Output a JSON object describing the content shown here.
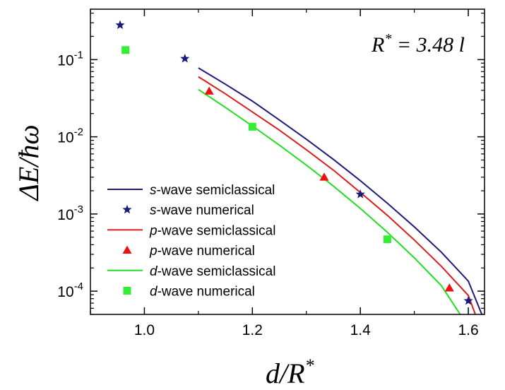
{
  "chart_data": {
    "type": "scatter",
    "annotation": {
      "lhs": "R",
      "sup": "*",
      "rhs": " = 3.48 ",
      "unit": "l"
    },
    "xlabel": {
      "main": "d/R",
      "sup": "*"
    },
    "ylabel": "ΔE/ħω",
    "xlim": [
      0.9,
      1.63
    ],
    "ylim": [
      5e-05,
      0.45
    ],
    "ylog": true,
    "x_ticks": [
      1.0,
      1.2,
      1.4,
      1.6
    ],
    "x_tick_labels": [
      "1.0",
      "1.2",
      "1.4",
      "1.6"
    ],
    "x_minor_ticks": [
      0.9,
      1.1,
      1.3,
      1.5
    ],
    "y_ticks": [
      {
        "value": 0.1,
        "base": "10",
        "exp": "-1"
      },
      {
        "value": 0.01,
        "base": "10",
        "exp": "-2"
      },
      {
        "value": 0.001,
        "base": "10",
        "exp": "-3"
      },
      {
        "value": 0.0001,
        "base": "10",
        "exp": "-4"
      }
    ],
    "legend_position": "bottom-left",
    "series": [
      {
        "kind": "line",
        "name": "s-wave semiclassical",
        "prefix": "s",
        "suffix": "-wave semiclassical",
        "color": "#1a1a7a",
        "x": [
          1.1,
          1.15,
          1.2,
          1.25,
          1.3,
          1.35,
          1.4,
          1.45,
          1.5,
          1.55,
          1.6,
          1.625
        ],
        "y": [
          0.078,
          0.048,
          0.029,
          0.0165,
          0.0093,
          0.0051,
          0.0027,
          0.00138,
          0.00068,
          0.00032,
          0.000135,
          5e-05
        ]
      },
      {
        "kind": "marker",
        "marker": "star",
        "name": "s-wave numerical",
        "prefix": "s",
        "suffix": "-wave numerical",
        "color": "#1a1a7a",
        "x": [
          0.955,
          1.075,
          1.4,
          1.6
        ],
        "y": [
          0.28,
          0.103,
          0.0018,
          7.5e-05
        ]
      },
      {
        "kind": "line",
        "name": "p-wave semiclassical",
        "prefix": "p",
        "suffix": "-wave semiclassical",
        "color": "#dd1c1c",
        "x": [
          1.1,
          1.15,
          1.2,
          1.25,
          1.3,
          1.35,
          1.4,
          1.45,
          1.5,
          1.55,
          1.6,
          1.613
        ],
        "y": [
          0.06,
          0.036,
          0.021,
          0.0122,
          0.0068,
          0.0037,
          0.0019,
          0.00096,
          0.00046,
          0.00021,
          8.8e-05,
          5e-05
        ]
      },
      {
        "kind": "marker",
        "marker": "triangle",
        "name": "p-wave numerical",
        "prefix": "p",
        "suffix": "-wave numerical",
        "color": "#ee1111",
        "x": [
          1.12,
          1.333,
          1.565
        ],
        "y": [
          0.039,
          0.003,
          0.00011
        ]
      },
      {
        "kind": "line",
        "name": "d-wave semiclassical",
        "prefix": "d",
        "suffix": "-wave semiclassical",
        "color": "#22dd22",
        "x": [
          1.1,
          1.15,
          1.2,
          1.25,
          1.3,
          1.35,
          1.4,
          1.45,
          1.5,
          1.55,
          1.585
        ],
        "y": [
          0.041,
          0.024,
          0.0138,
          0.0078,
          0.0043,
          0.0023,
          0.00118,
          0.00058,
          0.00027,
          0.000118,
          5e-05
        ]
      },
      {
        "kind": "marker",
        "marker": "square",
        "name": "d-wave numerical",
        "prefix": "d",
        "suffix": "-wave numerical",
        "color": "#33ee33",
        "x": [
          0.965,
          1.2,
          1.45
        ],
        "y": [
          0.133,
          0.0135,
          0.00047
        ]
      }
    ]
  }
}
